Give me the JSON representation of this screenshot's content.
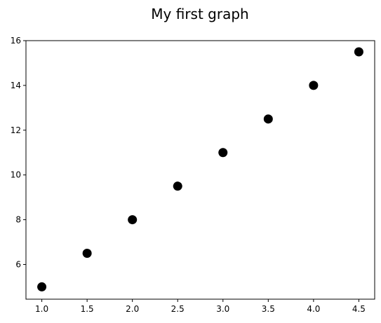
{
  "chart_data": {
    "type": "scatter",
    "title": "My first graph",
    "xlabel": "",
    "ylabel": "",
    "xlim": [
      0.825,
      4.675
    ],
    "ylim": [
      4.45,
      16.0
    ],
    "xticks": [
      1.0,
      1.5,
      2.0,
      2.5,
      3.0,
      3.5,
      4.0,
      4.5
    ],
    "yticks": [
      6,
      8,
      10,
      12,
      14,
      16
    ],
    "grid": false,
    "marker_color": "#000000",
    "series": [
      {
        "x": [
          1.0,
          1.5,
          2.0,
          2.5,
          3.0,
          3.5,
          4.0,
          4.5
        ],
        "y": [
          5.0,
          6.5,
          8.0,
          9.5,
          11.0,
          12.5,
          14.0,
          15.5
        ]
      }
    ]
  }
}
